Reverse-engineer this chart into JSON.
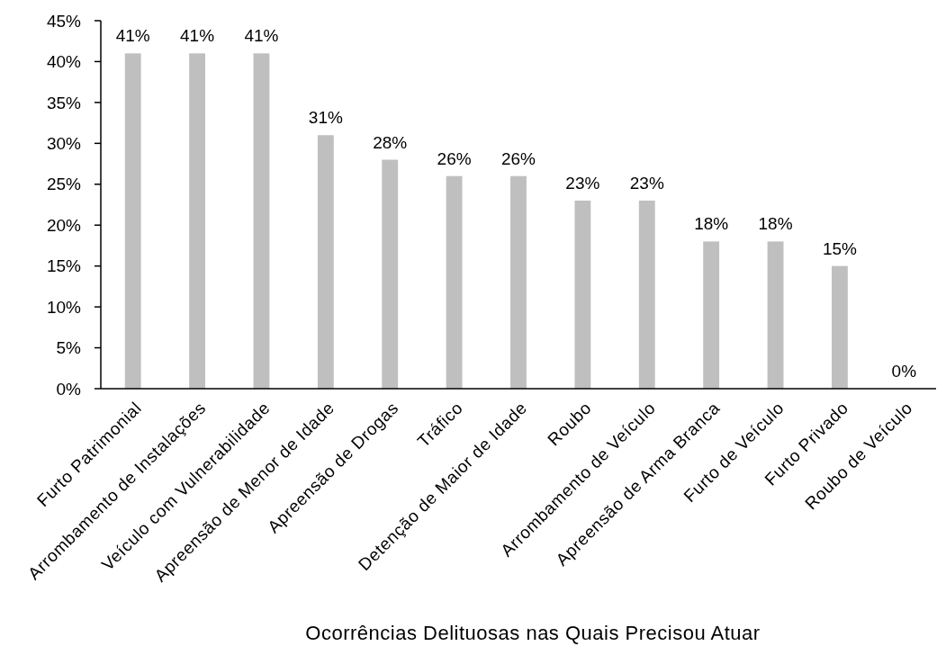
{
  "chart_data": {
    "type": "bar",
    "xlabel": "Ocorrências Delituosas nas Quais Precisou Atuar",
    "categories": [
      "Furto Patrimonial",
      "Arrombamento de Instalações",
      "Veículo com Vulnerabilidade",
      "Apreensão de Menor de Idade",
      "Apreensão de Drogas",
      "Tráfico",
      "Detenção de Maior de Idade",
      "Roubo",
      "Arrombamento de Veículo",
      "Apreensão de Arma Branca",
      "Furto de Veículo",
      "Furto Privado",
      "Roubo de Veículo"
    ],
    "values": [
      41,
      41,
      41,
      31,
      28,
      26,
      26,
      23,
      23,
      18,
      18,
      15,
      0
    ],
    "value_labels": [
      "41%",
      "41%",
      "41%",
      "31%",
      "28%",
      "26%",
      "26%",
      "23%",
      "23%",
      "18%",
      "18%",
      "15%",
      "0%"
    ],
    "color": "#bfbfbf",
    "ylim": [
      0,
      45
    ],
    "yticks": [
      {
        "value": 0,
        "label": "0%"
      },
      {
        "value": 5,
        "label": "5%"
      },
      {
        "value": 10,
        "label": "10%"
      },
      {
        "value": 15,
        "label": "15%"
      },
      {
        "value": 20,
        "label": "20%"
      },
      {
        "value": 25,
        "label": "25%"
      },
      {
        "value": 30,
        "label": "30%"
      },
      {
        "value": 35,
        "label": "35%"
      },
      {
        "value": 40,
        "label": "40%"
      },
      {
        "value": 45,
        "label": "45%"
      }
    ]
  }
}
